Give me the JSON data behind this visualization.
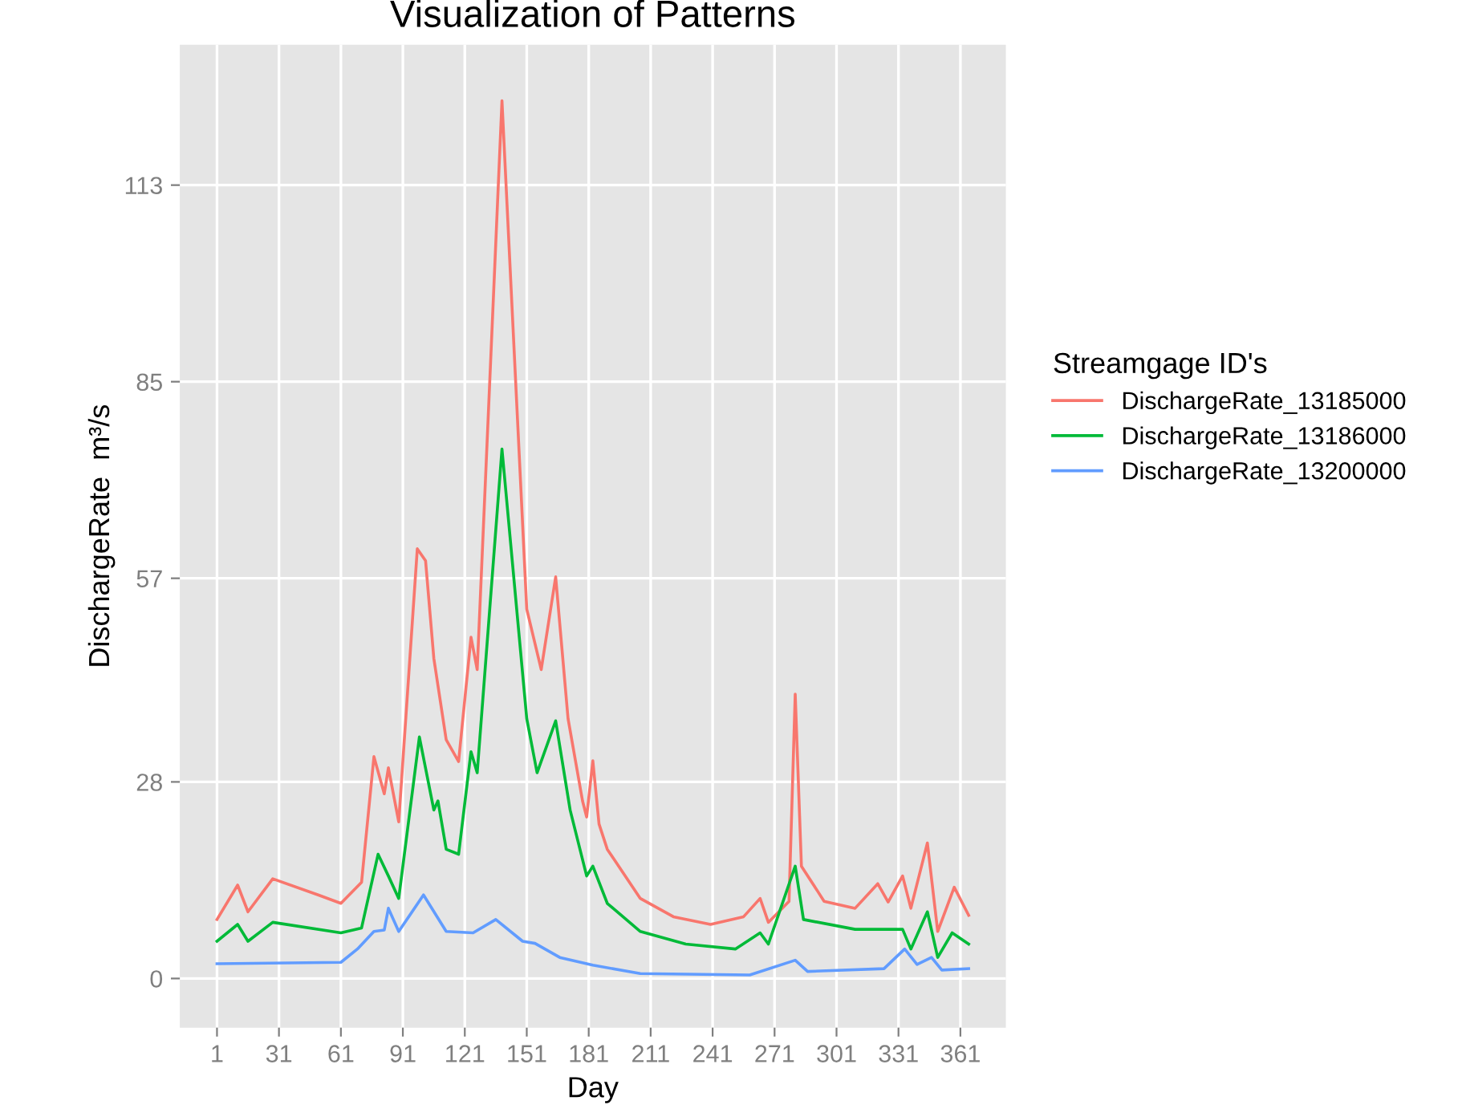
{
  "chart_data": {
    "type": "line",
    "title": "Visualization of Patterns",
    "xlabel": "Day",
    "ylabel": "DischargeRate  m³/s",
    "legend_title": "Streamgage ID's",
    "xlim": [
      -17,
      383
    ],
    "xticks": [
      1,
      31,
      61,
      91,
      121,
      151,
      181,
      211,
      241,
      271,
      301,
      331,
      361
    ],
    "ylim": [
      -7,
      133
    ],
    "yticks": [
      0,
      28,
      57,
      85,
      113
    ],
    "grid": true,
    "legend": "right",
    "series": [
      {
        "name": "DischargeRate_13185000",
        "color": "#f8766d",
        "x": [
          1,
          11,
          16,
          28,
          50,
          61,
          71,
          77,
          82,
          84,
          89,
          98,
          102,
          106,
          112,
          118,
          124,
          127,
          139,
          151,
          158,
          165,
          171,
          178,
          180,
          183,
          186,
          190,
          206,
          222,
          240,
          256,
          264,
          268,
          278,
          281,
          284,
          295,
          310,
          321,
          326,
          333,
          337,
          345,
          350,
          358,
          365
        ],
        "values": [
          8.4,
          13.3,
          9.5,
          14.2,
          11.9,
          10.7,
          13.7,
          31.6,
          26.3,
          30,
          22.3,
          61.2,
          59.5,
          45.6,
          34,
          30.9,
          48.6,
          44,
          125,
          52.6,
          44,
          57.2,
          37,
          25.3,
          23,
          31,
          22,
          18.4,
          11.4,
          8.8,
          7.7,
          8.8,
          11.4,
          8,
          11,
          40.5,
          16,
          11,
          10,
          13.5,
          10.9,
          14.6,
          10,
          19.3,
          6.7,
          13,
          9
        ]
      },
      {
        "name": "DischargeRate_13186000",
        "color": "#00ba38",
        "x": [
          1,
          11,
          16,
          28,
          61,
          71,
          79,
          84,
          89,
          99,
          106,
          108,
          112,
          118,
          124,
          127,
          139,
          151,
          156,
          165,
          172,
          180,
          183,
          190,
          206,
          228,
          252,
          264,
          268,
          281,
          285,
          310,
          333,
          337,
          345,
          350,
          357,
          365
        ],
        "values": [
          5.3,
          7.7,
          5.3,
          8,
          6.5,
          7.2,
          17.7,
          14.6,
          11.4,
          34.4,
          24,
          25.3,
          18.4,
          17.7,
          32.3,
          29.3,
          75.4,
          37,
          29.3,
          36.7,
          24,
          14.6,
          16,
          10.7,
          6.7,
          4.9,
          4.2,
          6.5,
          4.9,
          16,
          8.4,
          7,
          7,
          4.2,
          9.5,
          3,
          6.5,
          4.9
        ]
      },
      {
        "name": "DischargeRate_13200000",
        "color": "#619cff",
        "x": [
          1,
          61,
          69,
          77,
          82,
          84,
          89,
          101,
          112,
          125,
          136,
          149,
          155,
          167,
          183,
          206,
          259,
          281,
          287,
          324,
          334,
          340,
          347,
          352,
          365
        ],
        "values": [
          2.1,
          2.3,
          4.2,
          6.7,
          6.9,
          10,
          6.7,
          11.9,
          6.7,
          6.5,
          8.4,
          5.3,
          5,
          3,
          1.9,
          0.7,
          0.5,
          2.6,
          1,
          1.4,
          4.2,
          2,
          3,
          1.2,
          1.4
        ]
      }
    ]
  }
}
